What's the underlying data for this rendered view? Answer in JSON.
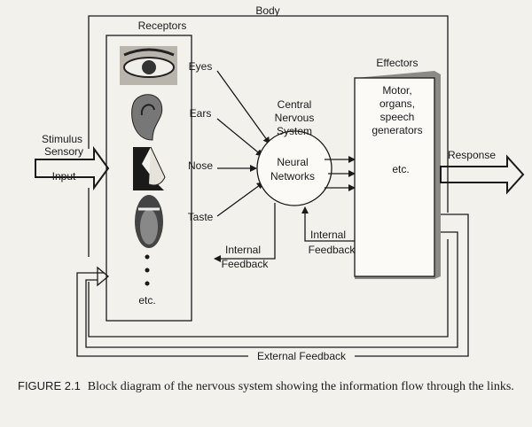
{
  "diagram": {
    "body_label": "Body",
    "receptors": {
      "title": "Receptors",
      "items": [
        "Eyes",
        "Ears",
        "Nose",
        "Taste"
      ],
      "more": "etc."
    },
    "cns": {
      "title": [
        "Central",
        "Nervous",
        "System"
      ],
      "core": [
        "Neural",
        "Networks"
      ]
    },
    "effectors": {
      "title": "Effectors",
      "items": [
        "Motor,",
        "organs,",
        "speech",
        "generators"
      ],
      "more": "etc."
    },
    "input": {
      "label": [
        "Stimulus",
        "Sensory",
        "Input"
      ]
    },
    "output": {
      "label": "Response"
    },
    "feedback": {
      "internal_left": [
        "Internal",
        "Feedback"
      ],
      "internal_right": [
        "Internal",
        "Feedback"
      ],
      "external": "External Feedback"
    }
  },
  "caption": {
    "label": "FIGURE 2.1",
    "text": "Block diagram of the nervous system showing the information flow through the links."
  }
}
